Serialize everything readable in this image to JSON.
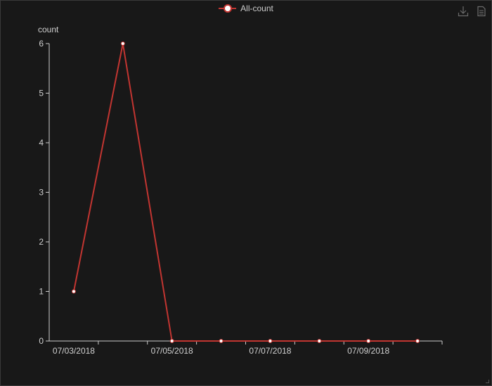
{
  "colors": {
    "series": "#c23531",
    "marker_fill": "#ffffff",
    "axis": "#cccccc",
    "text": "#cccccc",
    "background": "#181818"
  },
  "toolbox": {
    "save_icon": "download-icon",
    "dataview_icon": "document-icon"
  },
  "chart_data": {
    "type": "line",
    "title": "",
    "ylabel": "count",
    "xlabel": "",
    "ylim": [
      0,
      6
    ],
    "yticks": [
      0,
      1,
      2,
      3,
      4,
      5,
      6
    ],
    "categories": [
      "07/03/2018",
      "07/04/2018",
      "07/05/2018",
      "07/06/2018",
      "07/07/2018",
      "07/08/2018",
      "07/09/2018",
      "07/10/2018"
    ],
    "xtick_labels": [
      "07/03/2018",
      "",
      "07/05/2018",
      "",
      "07/07/2018",
      "",
      "07/09/2018",
      ""
    ],
    "series": [
      {
        "name": "All-count",
        "values": [
          1,
          6,
          0,
          0,
          0,
          0,
          0,
          0
        ]
      }
    ],
    "legend": "top-center",
    "grid": false
  }
}
